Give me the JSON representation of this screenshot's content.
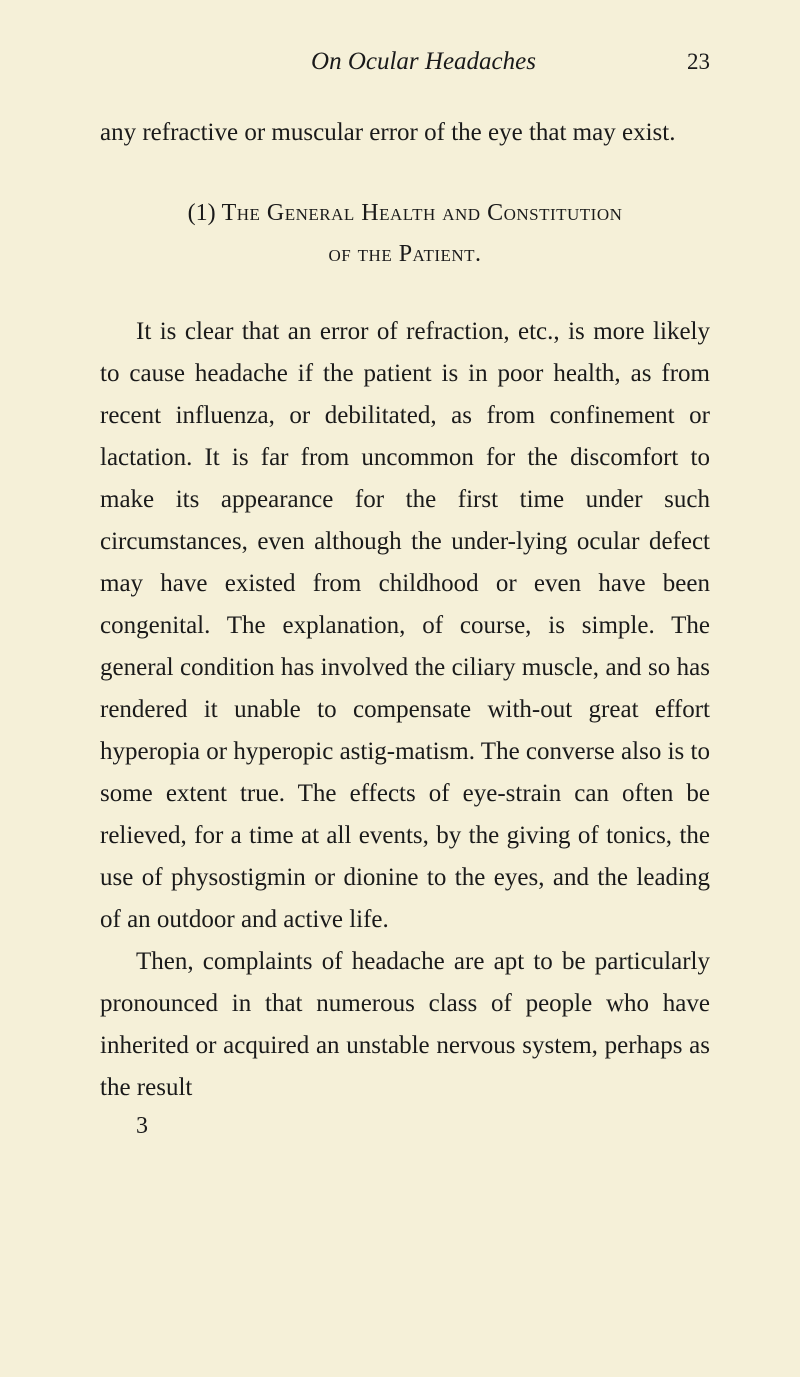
{
  "header": {
    "title": "On Ocular Headaches",
    "page_number": "23"
  },
  "intro": "any refractive or muscular error of the eye that may exist.",
  "section_heading": {
    "number": "(1)",
    "line1": "The General Health and Constitution",
    "line2": "of the Patient."
  },
  "paragraph1": "It is clear that an error of refraction, etc., is more likely to cause headache if the patient is in poor health, as from recent influenza, or debilitated, as from confinement or lactation. It is far from uncommon for the discomfort to make its appearance for the first time under such circumstances, even although the under-lying ocular defect may have existed from childhood or even have been congenital. The explanation, of course, is simple. The general condition has involved the ciliary muscle, and so has rendered it unable to compensate with-out great effort hyperopia or hyperopic astig-matism. The converse also is to some extent true. The effects of eye-strain can often be relieved, for a time at all events, by the giving of tonics, the use of physostigmin or dionine to the eyes, and the leading of an outdoor and active life.",
  "paragraph2": "Then, complaints of headache are apt to be particularly pronounced in that numerous class of people who have inherited or acquired an unstable nervous system, perhaps as the result",
  "footer_number": "3",
  "colors": {
    "background": "#f5f0d8",
    "text": "#1a1a1a"
  },
  "typography": {
    "body_fontsize": 25,
    "heading_fontsize": 24,
    "line_height": 1.68
  }
}
